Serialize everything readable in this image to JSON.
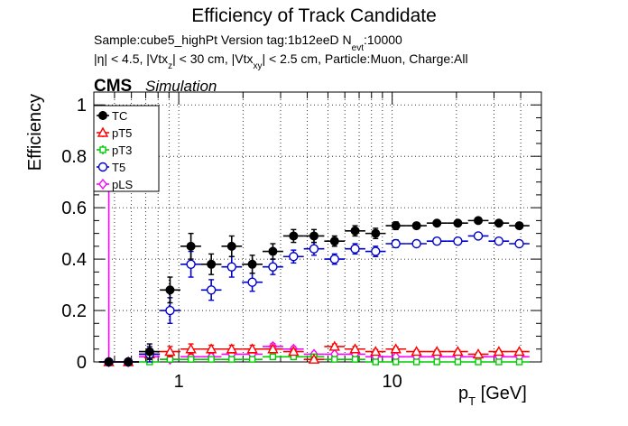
{
  "chart_data": {
    "type": "scatter",
    "title": "Efficiency of Track Candidate",
    "subtitle_lines": [
      "Sample:cube5_highPt   Version tag:1b12eeD  N",
      "|η| < 4.5, |Vtx",
      "| < 30 cm, |Vtx",
      "| < 2.5 cm, Particle:Muon, Charge:All"
    ],
    "nevt_sub": "evt",
    "nevt_value": ":10000",
    "vtx_z_sub": "z",
    "vtx_xy_sub": "xy",
    "cms_label": "CMS",
    "simulation_label": "Simulation",
    "ylabel": "Efficiency",
    "xlabel_main": "p",
    "xlabel_sub": "T",
    "xlabel_unit": " [GeV]",
    "xscale": "log",
    "xlim": [
      0.4,
      50
    ],
    "ylim": [
      0,
      1.05
    ],
    "x_tick_labels": [
      "1",
      "10"
    ],
    "y_tick_labels": [
      "0",
      "0.2",
      "0.4",
      "0.6",
      "0.8",
      "1"
    ],
    "grid": true,
    "legend_position": "top-left",
    "x_bin_centers": [
      0.47,
      0.58,
      0.73,
      0.91,
      1.14,
      1.42,
      1.77,
      2.21,
      2.76,
      3.45,
      4.3,
      5.37,
      6.7,
      8.36,
      10.4,
      13,
      16.2,
      20.3,
      25.3,
      31.6,
      39.4
    ],
    "series": [
      {
        "name": "TC",
        "color": "#000000",
        "marker": "filled-circle",
        "values": [
          0,
          0,
          0.04,
          0.28,
          0.45,
          0.38,
          0.45,
          0.38,
          0.43,
          0.49,
          0.49,
          0.47,
          0.51,
          0.5,
          0.53,
          0.53,
          0.54,
          0.54,
          0.55,
          0.54,
          0.53
        ],
        "errors": [
          0,
          0,
          0.03,
          0.05,
          0.05,
          0.04,
          0.04,
          0.035,
          0.03,
          0.025,
          0.025,
          0.02,
          0.02,
          0.02,
          0.015,
          0.012,
          0.01,
          0.01,
          0.01,
          0.01,
          0.01
        ]
      },
      {
        "name": "pT5",
        "color": "#ff0000",
        "marker": "open-triangle",
        "values": [
          0,
          0,
          0.03,
          0.04,
          0.05,
          0.05,
          0.05,
          0.05,
          0.05,
          0.04,
          0.01,
          0.06,
          0.05,
          0.04,
          0.05,
          0.04,
          0.04,
          0.04,
          0.03,
          0.04,
          0.04
        ],
        "errors": [
          0,
          0,
          0.02,
          0.02,
          0.02,
          0.015,
          0.015,
          0.015,
          0.012,
          0.01,
          0.008,
          0.01,
          0.01,
          0.008,
          0.008,
          0.006,
          0.006,
          0.006,
          0.005,
          0.005,
          0.005
        ]
      },
      {
        "name": "pT3",
        "color": "#00cc00",
        "marker": "open-square",
        "values": [
          0,
          0,
          0.0,
          0.01,
          0.01,
          0.01,
          0.01,
          0.01,
          0.02,
          0.02,
          0.02,
          0.01,
          0.01,
          0.0,
          0.0,
          0.0,
          0.0,
          0.0,
          0.0,
          0.0,
          0.0
        ],
        "errors": [
          0,
          0,
          0.01,
          0.01,
          0.01,
          0.008,
          0.008,
          0.008,
          0.006,
          0.005,
          0.005,
          0.004,
          0.004,
          0.003,
          0.003,
          0.002,
          0.002,
          0.002,
          0.002,
          0.002,
          0.002
        ]
      },
      {
        "name": "T5",
        "color": "#0000cc",
        "marker": "open-circle",
        "values": [
          0,
          0,
          0.03,
          0.2,
          0.38,
          0.28,
          0.37,
          0.31,
          0.37,
          0.41,
          0.44,
          0.4,
          0.44,
          0.43,
          0.46,
          0.46,
          0.47,
          0.47,
          0.49,
          0.47,
          0.46
        ],
        "errors": [
          0,
          0,
          0.03,
          0.05,
          0.05,
          0.04,
          0.04,
          0.035,
          0.03,
          0.025,
          0.025,
          0.02,
          0.02,
          0.02,
          0.015,
          0.012,
          0.01,
          0.01,
          0.01,
          0.01,
          0.01
        ]
      },
      {
        "name": "pLS",
        "color": "#ff00ff",
        "marker": "open-diamond",
        "values": [
          0,
          0,
          0.02,
          0.01,
          0.02,
          0.02,
          0.03,
          0.03,
          0.06,
          0.05,
          0.03,
          0.03,
          0.03,
          0.02,
          0.02,
          0.02,
          0.02,
          0.02,
          0.02,
          0.02,
          0.02
        ],
        "errors": [
          0.75,
          0,
          0.02,
          0.015,
          0.015,
          0.012,
          0.012,
          0.012,
          0.012,
          0.01,
          0.008,
          0.008,
          0.006,
          0.005,
          0.005,
          0.004,
          0.004,
          0.004,
          0.004,
          0.004,
          0.004
        ]
      }
    ]
  }
}
